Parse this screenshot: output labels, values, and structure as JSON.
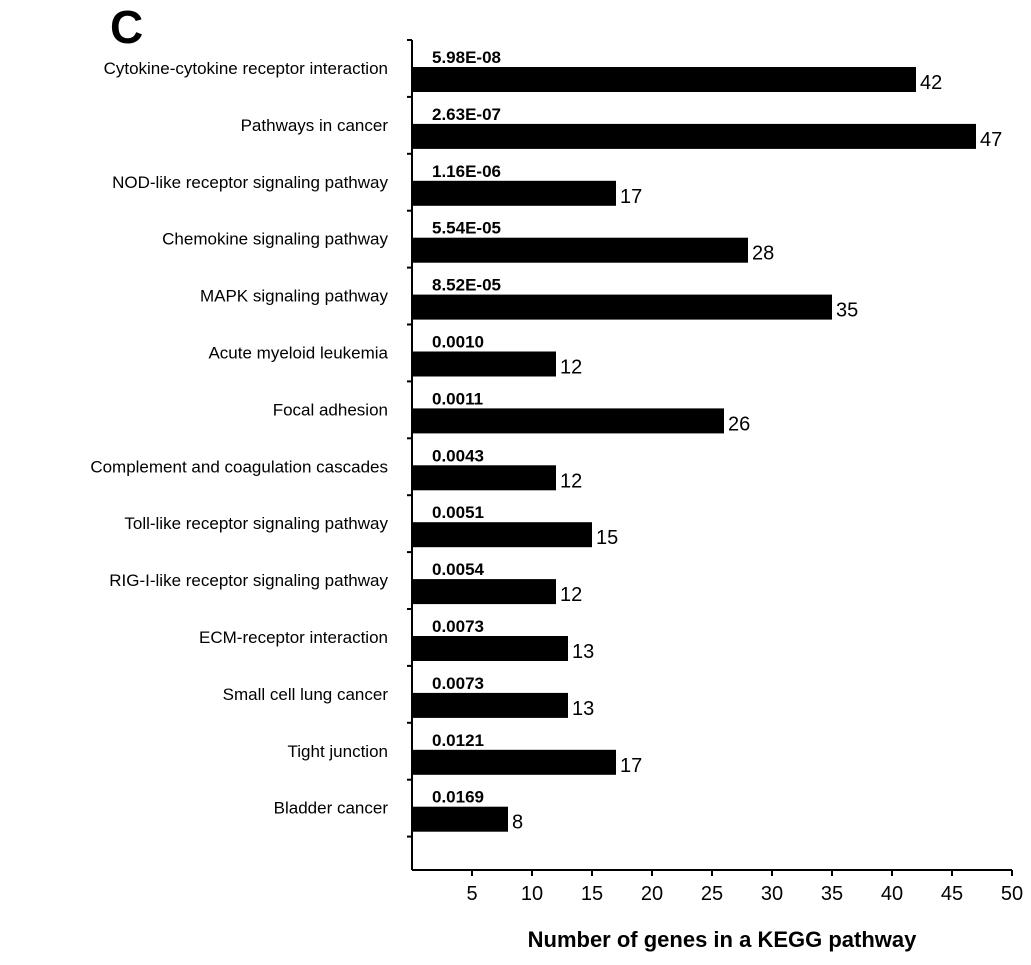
{
  "panel_label": "C",
  "chart_data": {
    "type": "bar",
    "orientation": "horizontal",
    "categories": [
      "Cytokine-cytokine receptor interaction",
      "Pathways in cancer",
      "NOD-like receptor signaling pathway",
      "Chemokine signaling pathway",
      "MAPK signaling pathway",
      "Acute myeloid leukemia",
      "Focal adhesion",
      "Complement and coagulation cascades",
      "Toll-like receptor signaling pathway",
      "RIG-I-like receptor signaling pathway",
      "ECM-receptor interaction",
      "Small cell lung cancer",
      "Tight junction",
      "Bladder cancer"
    ],
    "values": [
      42,
      47,
      17,
      28,
      35,
      12,
      26,
      12,
      15,
      12,
      13,
      13,
      17,
      8
    ],
    "p_values": [
      "5.98E-08",
      "2.63E-07",
      "1.16E-06",
      "5.54E-05",
      "8.52E-05",
      "0.0010",
      "0.0011",
      "0.0043",
      "0.0051",
      "0.0054",
      "0.0073",
      "0.0073",
      "0.0121",
      "0.0169"
    ],
    "xlabel": "Number of genes in a KEGG pathway",
    "x_ticks": [
      5,
      10,
      15,
      20,
      25,
      30,
      35,
      40,
      45,
      50
    ],
    "xlim": [
      0,
      50
    ],
    "bar_color": "#000000",
    "grid": false
  }
}
